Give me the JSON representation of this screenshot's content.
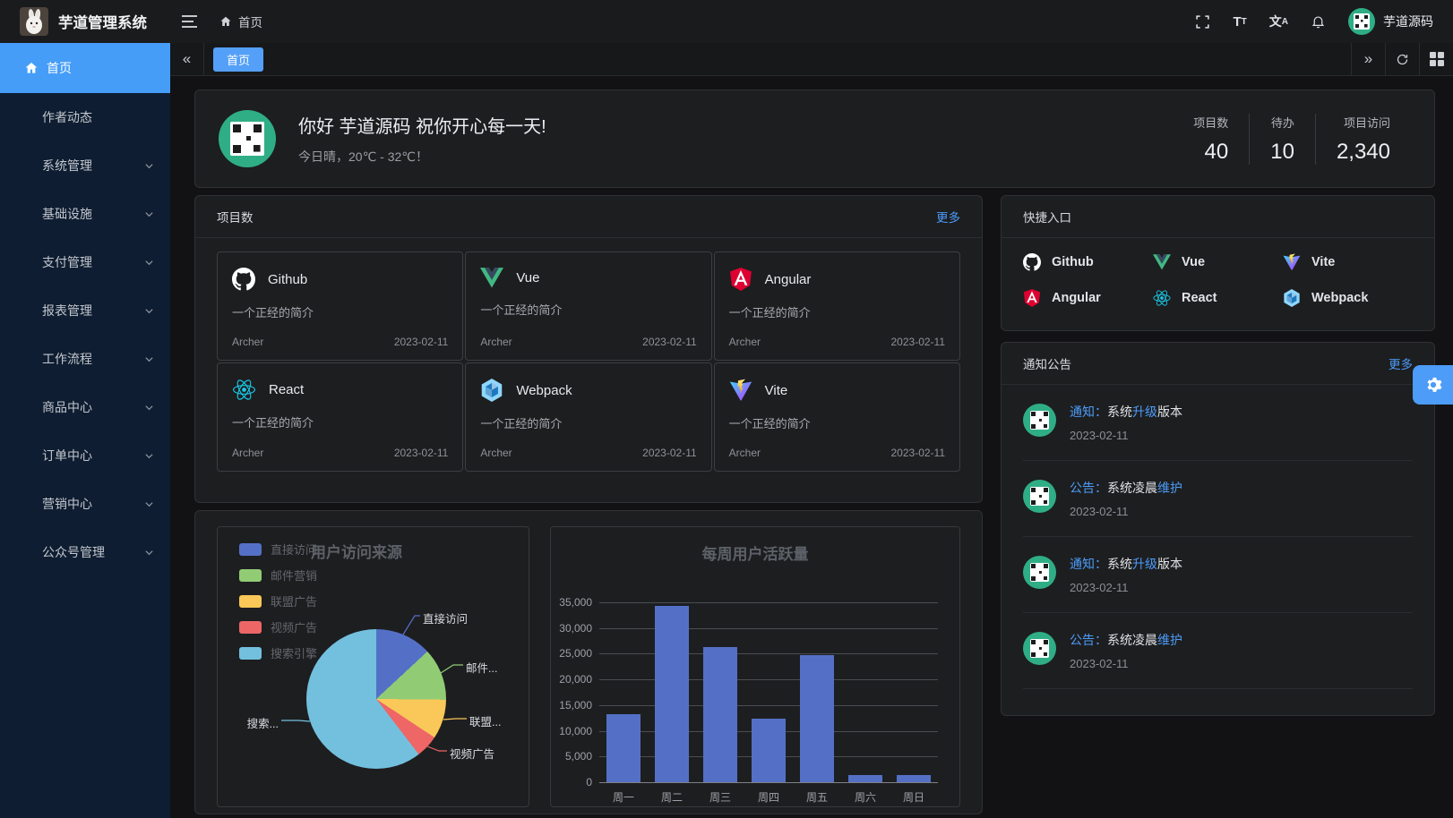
{
  "topbar": {
    "title": "芋道管理系统",
    "breadcrumb_home": "首页",
    "username": "芋道源码",
    "icons": [
      "hamburger-icon",
      "home-icon",
      "fullscreen-icon",
      "font-size-icon",
      "locale-icon",
      "bell-icon"
    ]
  },
  "tabbar": {
    "tabs": [
      {
        "label": "首页",
        "active": true
      }
    ],
    "icons": [
      "collapse-left-icon",
      "expand-right-icon",
      "refresh-icon",
      "layout-grid-icon"
    ]
  },
  "sidebar": {
    "items": [
      {
        "label": "首页",
        "icon": "home-icon",
        "active": true
      },
      {
        "label": "作者动态"
      },
      {
        "label": "系统管理",
        "expandable": true
      },
      {
        "label": "基础设施",
        "expandable": true
      },
      {
        "label": "支付管理",
        "expandable": true
      },
      {
        "label": "报表管理",
        "expandable": true
      },
      {
        "label": "工作流程",
        "expandable": true
      },
      {
        "label": "商品中心",
        "expandable": true
      },
      {
        "label": "订单中心",
        "expandable": true
      },
      {
        "label": "营销中心",
        "expandable": true
      },
      {
        "label": "公众号管理",
        "expandable": true
      }
    ]
  },
  "welcome": {
    "greeting": "你好 芋道源码 祝你开心每一天!",
    "weather": "今日晴，20℃ - 32℃！",
    "stats": [
      {
        "label": "项目数",
        "value": "40"
      },
      {
        "label": "待办",
        "value": "10"
      },
      {
        "label": "项目访问",
        "value": "2,340"
      }
    ]
  },
  "projects": {
    "title": "项目数",
    "more": "更多",
    "items": [
      {
        "name": "Github",
        "icon": "github-icon",
        "desc": "一个正经的简介",
        "author": "Archer",
        "date": "2023-02-11"
      },
      {
        "name": "Vue",
        "icon": "vue-icon",
        "desc": "一个正经的简介",
        "author": "Archer",
        "date": "2023-02-11"
      },
      {
        "name": "Angular",
        "icon": "angular-icon",
        "desc": "一个正经的简介",
        "author": "Archer",
        "date": "2023-02-11"
      },
      {
        "name": "React",
        "icon": "react-icon",
        "desc": "一个正经的简介",
        "author": "Archer",
        "date": "2023-02-11"
      },
      {
        "name": "Webpack",
        "icon": "webpack-icon",
        "desc": "一个正经的简介",
        "author": "Archer",
        "date": "2023-02-11"
      },
      {
        "name": "Vite",
        "icon": "vite-icon",
        "desc": "一个正经的简介",
        "author": "Archer",
        "date": "2023-02-11"
      }
    ]
  },
  "shortcuts": {
    "title": "快捷入口",
    "items": [
      {
        "label": "Github",
        "icon": "github-icon"
      },
      {
        "label": "Vue",
        "icon": "vue-icon"
      },
      {
        "label": "Vite",
        "icon": "vite-icon"
      },
      {
        "label": "Angular",
        "icon": "angular-icon"
      },
      {
        "label": "React",
        "icon": "react-icon"
      },
      {
        "label": "Webpack",
        "icon": "webpack-icon"
      }
    ]
  },
  "notices": {
    "title": "通知公告",
    "more": "更多",
    "items": [
      {
        "parts": [
          {
            "text": "通知：",
            "hl": true
          },
          {
            "text": "系统"
          },
          {
            "text": "升级",
            "hl": true
          },
          {
            "text": "版本"
          }
        ],
        "date": "2023-02-11"
      },
      {
        "parts": [
          {
            "text": "公告：",
            "hl": true
          },
          {
            "text": "系统凌晨"
          },
          {
            "text": "维护",
            "hl": true
          }
        ],
        "date": "2023-02-11"
      },
      {
        "parts": [
          {
            "text": "通知：",
            "hl": true
          },
          {
            "text": "系统"
          },
          {
            "text": "升级",
            "hl": true
          },
          {
            "text": "版本"
          }
        ],
        "date": "2023-02-11"
      },
      {
        "parts": [
          {
            "text": "公告：",
            "hl": true
          },
          {
            "text": "系统凌晨"
          },
          {
            "text": "维护",
            "hl": true
          }
        ],
        "date": "2023-02-11"
      }
    ]
  },
  "colors": {
    "accent_blue": "#4c9cf8",
    "sidebar_bg": "#0e1d31",
    "card_bg": "#1d1e20",
    "avatar_green": "#2fae85"
  },
  "chart_data": [
    {
      "type": "pie",
      "title": "用户访问来源",
      "legend_position": "left",
      "labels": [
        "直接访问",
        "邮件营销",
        "联盟广告",
        "视频广告",
        "搜索引擎"
      ],
      "values": [
        335,
        310,
        234,
        135,
        1548
      ],
      "colors": [
        "#5470c6",
        "#91cc75",
        "#fac858",
        "#ee6666",
        "#73c0de"
      ],
      "callouts": [
        "直接访问",
        "邮件...",
        "联盟...",
        "视频广告",
        "搜索..."
      ]
    },
    {
      "type": "bar",
      "title": "每周用户活跃量",
      "categories": [
        "周一",
        "周二",
        "周三",
        "周四",
        "周五",
        "周六",
        "周日"
      ],
      "values": [
        13300,
        34300,
        26300,
        12400,
        24700,
        1400,
        1400
      ],
      "ylim": [
        0,
        35000
      ],
      "yticks": [
        "35,000",
        "30,000",
        "25,000",
        "20,000",
        "15,000",
        "10,000",
        "5,000",
        "0"
      ],
      "bar_color": "#5470c6",
      "grid": true
    }
  ]
}
